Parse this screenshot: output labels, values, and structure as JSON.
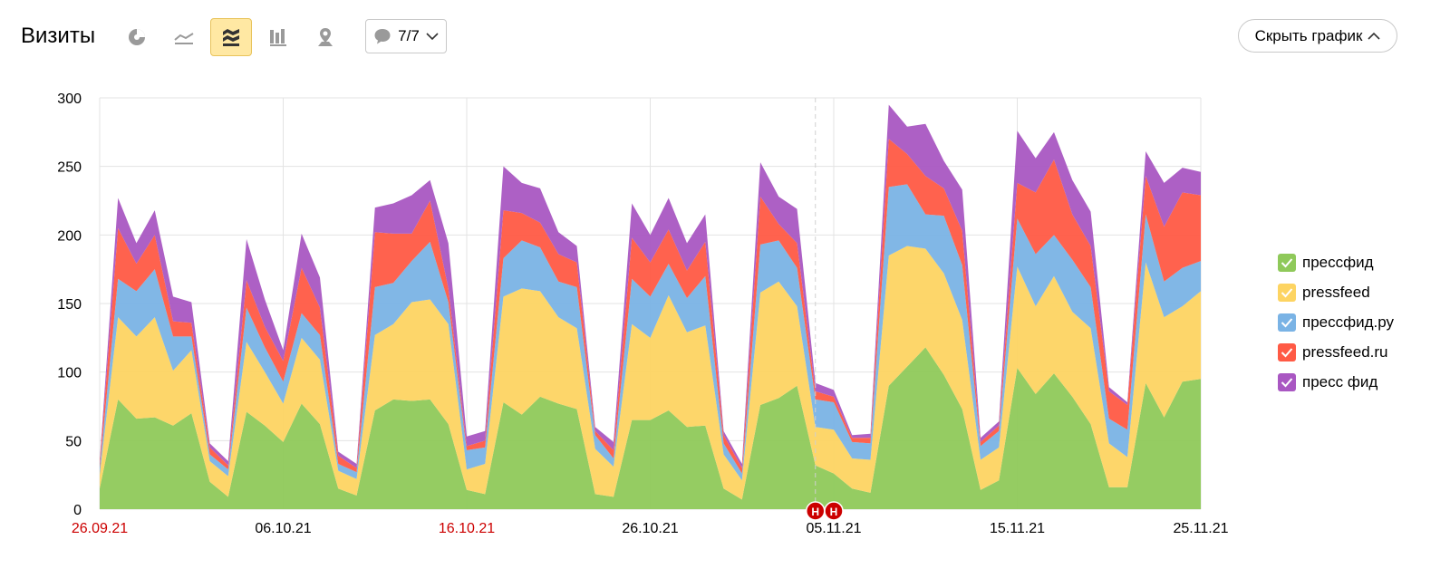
{
  "header": {
    "title": "Визиты",
    "notes_count": "7/7",
    "hide_chart_label": "Скрыть график",
    "views": [
      {
        "name": "pie-view-button",
        "icon": "pie-chart-icon",
        "active": false
      },
      {
        "name": "line-view-button",
        "icon": "line-chart-icon",
        "active": false
      },
      {
        "name": "area-view-button",
        "icon": "stacked-area-icon",
        "active": true
      },
      {
        "name": "bar-view-button",
        "icon": "bar-chart-icon",
        "active": false
      },
      {
        "name": "map-view-button",
        "icon": "map-pin-icon",
        "active": false
      }
    ]
  },
  "colors": {
    "accent_active": "#ffe8a3",
    "holiday_label": "#cc0000",
    "annotation_marker": "#cc0000"
  },
  "chart_data": {
    "type": "area",
    "stacked": true,
    "x_start": "26.09.21",
    "x_end": "25.11.21",
    "ylim": [
      0,
      300
    ],
    "yticks": [
      0,
      50,
      100,
      150,
      200,
      250,
      300
    ],
    "xticks": [
      {
        "label": "26.09.21",
        "holiday": true
      },
      {
        "label": "06.10.21",
        "holiday": false
      },
      {
        "label": "16.10.21",
        "holiday": true
      },
      {
        "label": "26.10.21",
        "holiday": false
      },
      {
        "label": "05.11.21",
        "holiday": false
      },
      {
        "label": "15.11.21",
        "holiday": false
      },
      {
        "label": "25.11.21",
        "holiday": false
      }
    ],
    "annotations": [
      {
        "label": "H",
        "date": "04.11.21"
      },
      {
        "label": "H",
        "date": "05.11.21"
      }
    ],
    "grid": true,
    "legend_position": "right",
    "series": [
      {
        "name": "прессфид",
        "color": "#8fc95a",
        "values": [
          15,
          80,
          66,
          67,
          61,
          70,
          20,
          9,
          71,
          61,
          49,
          77,
          62,
          15,
          10,
          72,
          80,
          79,
          80,
          62,
          14,
          11,
          78,
          69,
          82,
          77,
          73,
          11,
          9,
          65,
          65,
          72,
          60,
          61,
          15,
          7,
          76,
          81,
          90,
          32,
          26,
          15,
          12,
          90,
          104,
          118,
          98,
          73,
          14,
          21,
          103,
          84,
          99,
          82,
          62,
          16,
          16,
          92,
          67,
          93,
          95
        ]
      },
      {
        "name": "pressfeed",
        "color": "#fdd462",
        "values": [
          10,
          60,
          60,
          73,
          40,
          46,
          15,
          15,
          51,
          39,
          28,
          48,
          47,
          13,
          12,
          55,
          55,
          72,
          73,
          73,
          15,
          22,
          77,
          92,
          77,
          63,
          59,
          33,
          22,
          70,
          60,
          84,
          69,
          73,
          25,
          14,
          82,
          85,
          58,
          28,
          32,
          22,
          24,
          95,
          88,
          72,
          74,
          65,
          22,
          24,
          74,
          64,
          71,
          62,
          70,
          32,
          22,
          88,
          73,
          55,
          64
        ]
      },
      {
        "name": "прессфид.ру",
        "color": "#7ab3e5",
        "values": [
          5,
          28,
          33,
          35,
          25,
          10,
          5,
          5,
          25,
          18,
          16,
          18,
          18,
          5,
          5,
          35,
          30,
          30,
          42,
          16,
          14,
          12,
          28,
          35,
          32,
          26,
          30,
          10,
          6,
          33,
          30,
          23,
          25,
          36,
          8,
          5,
          35,
          30,
          28,
          20,
          20,
          12,
          12,
          50,
          45,
          25,
          42,
          40,
          10,
          12,
          35,
          38,
          30,
          38,
          30,
          18,
          20,
          35,
          26,
          28,
          22
        ]
      },
      {
        "name": "pressfeed.ru",
        "color": "#ff5a45",
        "values": [
          3,
          37,
          20,
          25,
          11,
          10,
          5,
          3,
          20,
          15,
          15,
          33,
          20,
          6,
          3,
          40,
          36,
          20,
          30,
          10,
          3,
          5,
          35,
          20,
          18,
          20,
          18,
          3,
          6,
          30,
          25,
          25,
          20,
          25,
          6,
          4,
          35,
          12,
          18,
          6,
          4,
          3,
          4,
          35,
          22,
          28,
          20,
          25,
          3,
          4,
          26,
          45,
          55,
          33,
          30,
          20,
          18,
          28,
          40,
          55,
          48
        ]
      },
      {
        "name": "пресс фид",
        "color": "#a957c2",
        "values": [
          2,
          22,
          15,
          18,
          18,
          15,
          3,
          3,
          30,
          20,
          8,
          25,
          22,
          3,
          3,
          18,
          22,
          28,
          15,
          33,
          7,
          7,
          32,
          22,
          25,
          16,
          12,
          3,
          6,
          25,
          20,
          23,
          20,
          20,
          3,
          3,
          25,
          20,
          25,
          6,
          5,
          2,
          3,
          25,
          20,
          38,
          20,
          30,
          3,
          3,
          38,
          25,
          20,
          25,
          25,
          3,
          2,
          18,
          32,
          18,
          17
        ]
      }
    ]
  }
}
